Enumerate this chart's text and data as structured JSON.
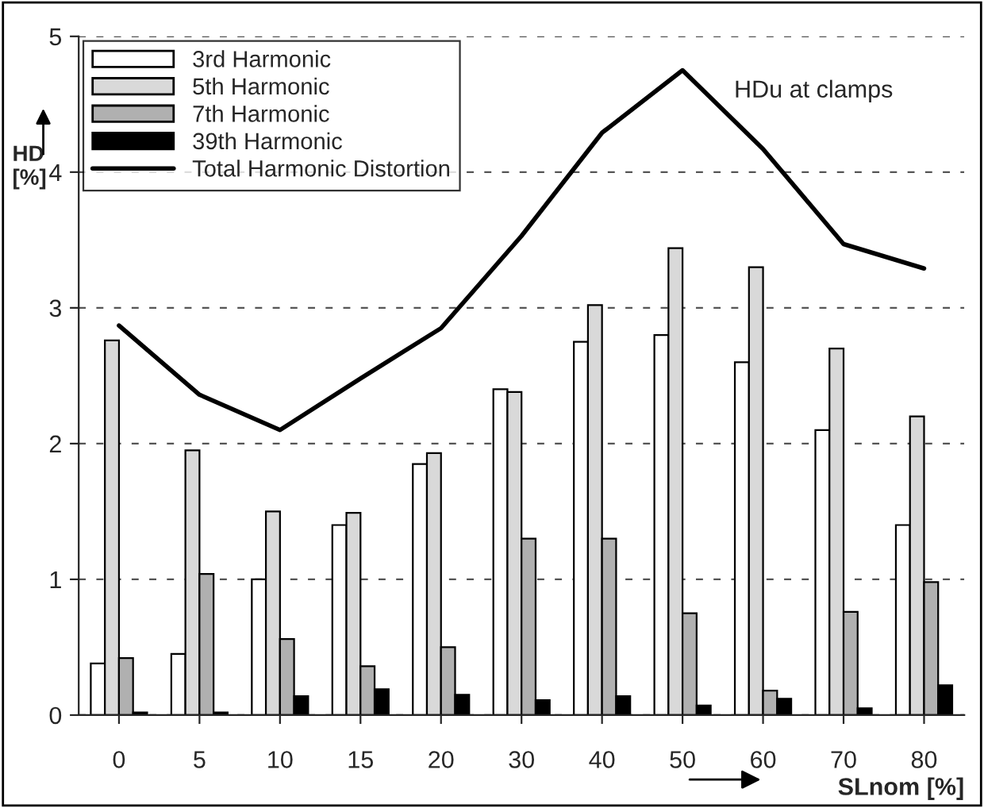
{
  "chart_data": {
    "type": "bar",
    "xlabel": "SLnom [%]",
    "ylabel": "HD\n[%]",
    "categories": [
      "0",
      "5",
      "10",
      "15",
      "20",
      "30",
      "40",
      "50",
      "60",
      "70",
      "80"
    ],
    "series": [
      {
        "name": "3rd Harmonic",
        "color": "#ffffff",
        "values": [
          0.38,
          0.45,
          1.0,
          1.4,
          1.85,
          2.4,
          2.75,
          2.8,
          2.6,
          2.1,
          1.4
        ]
      },
      {
        "name": "5th Harmonic",
        "color": "#d9d9d9",
        "values": [
          2.76,
          1.95,
          1.5,
          1.49,
          1.93,
          2.38,
          3.02,
          3.44,
          3.3,
          2.7,
          2.2
        ]
      },
      {
        "name": "7th Harmonic",
        "color": "#b0b0b0",
        "values": [
          0.42,
          1.04,
          0.56,
          0.36,
          0.5,
          1.3,
          1.3,
          0.75,
          0.18,
          0.76,
          0.98
        ]
      },
      {
        "name": "39th Harmonic",
        "color": "#000000",
        "values": [
          0.02,
          0.02,
          0.14,
          0.19,
          0.15,
          0.11,
          0.14,
          0.07,
          0.12,
          0.05,
          0.22
        ]
      },
      {
        "name": "Total Harmonic Distortion",
        "type": "line",
        "color": "#000000",
        "values": [
          2.87,
          2.36,
          2.1,
          2.48,
          2.85,
          3.53,
          4.29,
          4.75,
          4.17,
          3.47,
          3.29
        ]
      }
    ],
    "ylim": [
      0,
      5
    ],
    "yticks": [
      0,
      1,
      2,
      3,
      4,
      5
    ],
    "grid": "y",
    "legend": "top left",
    "line_style": "solid",
    "marker": "none",
    "annotations": [
      "HDu at clamps"
    ]
  }
}
